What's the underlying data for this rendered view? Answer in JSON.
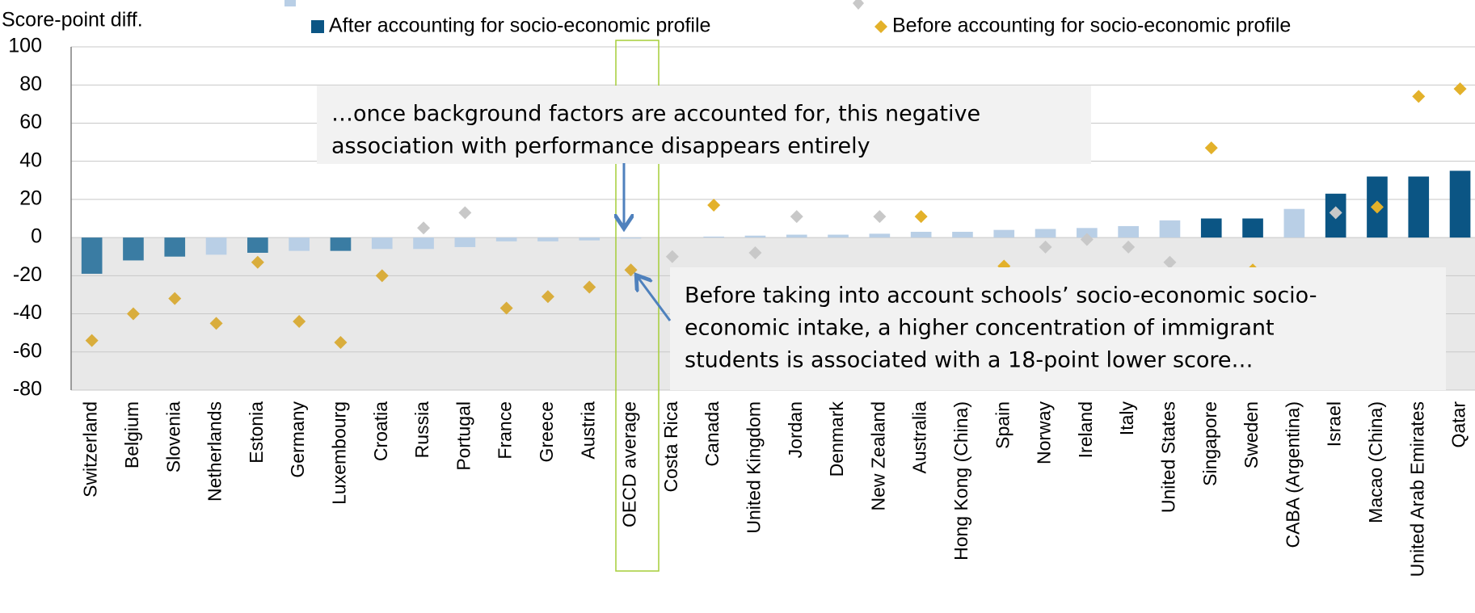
{
  "chart_data": {
    "type": "bar",
    "y_label": "Score-point diff.",
    "categories": [
      "Switzerland",
      "Belgium",
      "Slovenia",
      "Netherlands",
      "Estonia",
      "Germany",
      "Luxembourg",
      "Croatia",
      "Russia",
      "Portugal",
      "France",
      "Greece",
      "Austria",
      "OECD average",
      "Costa Rica",
      "Canada",
      "United Kingdom",
      "Jordan",
      "Denmark",
      "New Zealand",
      "Australia",
      "Hong Kong (China)",
      "Spain",
      "Norway",
      "Ireland",
      "Italy",
      "United States",
      "Singapore",
      "Sweden",
      "CABA (Argentina)",
      "Israel",
      "Macao (China)",
      "United Arab Emirates",
      "Qatar"
    ],
    "series": [
      {
        "name": "After accounting for socio-economic profile",
        "kind": "bar",
        "color": "#0b5584",
        "values": [
          -19,
          -12,
          -10,
          -9,
          -8,
          -7,
          -7,
          -6,
          -6,
          -5,
          -2,
          -2,
          -1.5,
          -0.5,
          0,
          0.5,
          1,
          1.5,
          1.5,
          2,
          3,
          3,
          4,
          4.5,
          5,
          6,
          9,
          10,
          10,
          15,
          23,
          32,
          32,
          35
        ],
        "colors": [
          "#3a7ca3",
          "#3a7ca3",
          "#3a7ca3",
          "#b9cfe6",
          "#3a7ca3",
          "#b9cfe6",
          "#3a7ca3",
          "#b9cfe6",
          "#b9cfe6",
          "#b9cfe6",
          "#b9cfe6",
          "#b9cfe6",
          "#b9cfe6",
          "#b9cfe6",
          "#b9cfe6",
          "#b9cfe6",
          "#b9cfe6",
          "#b9cfe6",
          "#b9cfe6",
          "#b9cfe6",
          "#b9cfe6",
          "#b9cfe6",
          "#b9cfe6",
          "#b9cfe6",
          "#b9cfe6",
          "#b9cfe6",
          "#b9cfe6",
          "#0b5584",
          "#0b5584",
          "#b9cfe6",
          "#0b5584",
          "#0b5584",
          "#0b5584",
          "#0b5584"
        ]
      },
      {
        "name": "Before accounting for socio-economic profile",
        "kind": "diamond",
        "color": "#e3b12a",
        "values": [
          -54,
          -40,
          -32,
          -45,
          -13,
          -44,
          -55,
          -20,
          5,
          13,
          -37,
          -31,
          -26,
          -17,
          -10,
          17,
          -8,
          11,
          null,
          11,
          11,
          null,
          -15,
          -5,
          -1,
          -5,
          -13,
          47,
          -17,
          null,
          13,
          16,
          74,
          78
        ],
        "colors": [
          "#d9ad3c",
          "#d9ad3c",
          "#d9ad3c",
          "#d9ad3c",
          "#d9ad3c",
          "#d9ad3c",
          "#d9ad3c",
          "#d9ad3c",
          "#c8c8c8",
          "#c8c8c8",
          "#d9ad3c",
          "#d9ad3c",
          "#d9ad3c",
          "#d9ad3c",
          "#c8c8c8",
          "#e3b12a",
          "#c8c8c8",
          "#c8c8c8",
          "#c8c8c8",
          "#c8c8c8",
          "#e3b12a",
          "#c8c8c8",
          "#e3b12a",
          "#c8c8c8",
          "#c8c8c8",
          "#c8c8c8",
          "#c8c8c8",
          "#e3b12a",
          "#e3b12a",
          "#c8c8c8",
          "#c8c8c8",
          "#e3b12a",
          "#e3b12a",
          "#e3b12a"
        ]
      }
    ],
    "ylim": [
      -80,
      100
    ],
    "yticks": [
      -80,
      -60,
      -40,
      -20,
      0,
      20,
      40,
      60,
      80,
      100
    ],
    "grid": true,
    "annotations": [
      {
        "lines": [
          "…once background factors are accounted for, this negative",
          "association with performance disappears entirely"
        ]
      },
      {
        "lines": [
          "Before taking into account schools’ socio-economic socio-",
          "economic intake, a higher concentration of immigrant",
          "students is associated with a 18-point lower score…"
        ]
      }
    ]
  }
}
